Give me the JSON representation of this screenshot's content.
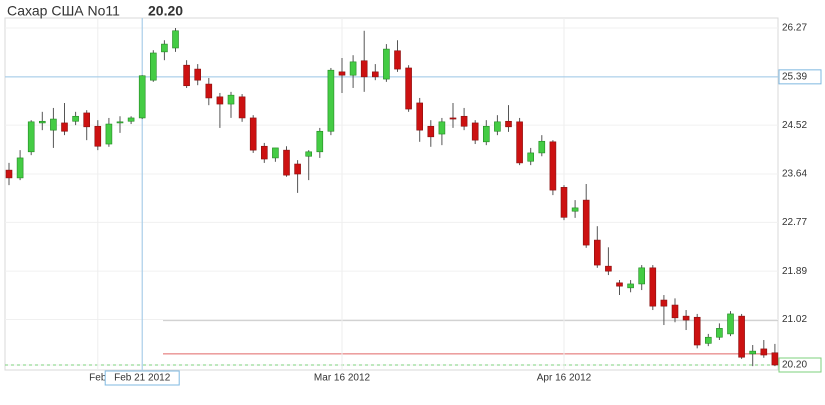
{
  "chart_data": {
    "type": "candlestick",
    "title": "Сахар США No11",
    "price": {
      "value": 20.2,
      "label": "20.20"
    },
    "categories": [
      null,
      null,
      null,
      null,
      null,
      null,
      null,
      null,
      "Feb",
      null,
      null,
      null,
      "Feb 21 2012",
      null,
      null,
      null,
      null,
      null,
      null,
      null,
      null,
      null,
      null,
      null,
      null,
      null,
      null,
      null,
      null,
      null,
      "Mar 16 2012",
      null,
      null,
      null,
      null,
      null,
      null,
      null,
      null,
      null,
      null,
      null,
      null,
      null,
      null,
      null,
      null,
      null,
      null,
      null,
      "Apr 16 2012",
      null,
      null,
      null,
      null,
      null,
      null,
      null,
      null,
      null,
      null,
      null,
      null,
      null,
      null,
      null,
      null,
      null,
      null,
      null
    ],
    "open": [
      23.71,
      23.57,
      24.04,
      24.56,
      24.43,
      24.56,
      24.59,
      24.74,
      24.5,
      24.18,
      24.56,
      24.59,
      24.65,
      25.33,
      25.84,
      25.91,
      25.6,
      25.53,
      25.26,
      25.03,
      24.9,
      25.03,
      24.65,
      24.14,
      23.93,
      24.07,
      23.82,
      23.96,
      24.04,
      24.41,
      25.48,
      25.42,
      25.68,
      25.48,
      25.35,
      25.86,
      25.55,
      24.92,
      24.5,
      24.36,
      24.65,
      24.68,
      24.56,
      24.22,
      24.41,
      24.59,
      24.58,
      23.87,
      24.02,
      24.22,
      23.4,
      22.97,
      23.17,
      22.45,
      21.98,
      21.68,
      21.59,
      21.66,
      21.95,
      21.37,
      21.28,
      21.08,
      21.06,
      20.59,
      20.7,
      20.76,
      21.08,
      20.4,
      20.49,
      20.42
    ],
    "high": [
      23.84,
      24.07,
      24.61,
      24.76,
      24.83,
      24.92,
      24.76,
      24.79,
      24.61,
      24.65,
      24.68,
      24.68,
      25.42,
      25.87,
      26.05,
      26.27,
      25.69,
      25.62,
      25.37,
      25.1,
      25.12,
      25.08,
      24.7,
      24.2,
      24.11,
      24.14,
      23.89,
      24.07,
      24.47,
      25.55,
      25.73,
      25.78,
      26.22,
      25.62,
      25.98,
      26.05,
      25.6,
      25.01,
      24.61,
      24.65,
      24.92,
      24.83,
      24.61,
      24.61,
      24.7,
      24.88,
      24.65,
      24.11,
      24.34,
      24.25,
      23.44,
      23.17,
      23.46,
      22.7,
      22.32,
      21.73,
      21.73,
      22.0,
      22.0,
      21.46,
      21.4,
      21.19,
      21.12,
      20.76,
      20.95,
      21.17,
      21.12,
      20.56,
      20.65,
      20.58
    ],
    "low": [
      23.44,
      23.53,
      23.98,
      24.43,
      24.11,
      24.34,
      24.52,
      24.25,
      24.07,
      24.13,
      24.38,
      24.54,
      24.63,
      25.3,
      25.69,
      25.84,
      25.19,
      25.24,
      24.88,
      24.47,
      24.65,
      24.58,
      24.02,
      23.84,
      23.86,
      23.59,
      23.3,
      23.53,
      23.93,
      24.34,
      25.1,
      25.19,
      25.12,
      25.33,
      25.3,
      25.48,
      24.76,
      24.22,
      24.13,
      24.16,
      24.47,
      24.43,
      24.18,
      24.16,
      24.34,
      24.4,
      23.8,
      23.8,
      23.96,
      23.26,
      22.81,
      22.85,
      22.31,
      21.95,
      21.82,
      21.46,
      21.51,
      21.55,
      21.19,
      20.92,
      20.97,
      20.83,
      20.5,
      20.54,
      20.65,
      20.72,
      20.31,
      20.18,
      20.33,
      20.18
    ],
    "close": [
      23.57,
      23.93,
      24.58,
      24.59,
      24.63,
      24.41,
      24.68,
      24.49,
      24.14,
      24.54,
      24.58,
      24.65,
      25.41,
      25.82,
      25.98,
      26.22,
      25.23,
      25.33,
      25.01,
      24.9,
      25.06,
      24.65,
      24.07,
      23.91,
      24.11,
      23.62,
      23.64,
      24.04,
      24.41,
      25.51,
      25.42,
      25.66,
      25.39,
      25.39,
      25.89,
      25.53,
      24.81,
      24.43,
      24.31,
      24.58,
      24.63,
      24.5,
      24.25,
      24.5,
      24.58,
      24.49,
      23.84,
      24.02,
      24.23,
      23.35,
      22.86,
      23.03,
      22.36,
      22.0,
      21.89,
      21.62,
      21.66,
      21.95,
      21.26,
      21.26,
      21.05,
      21.01,
      20.56,
      20.7,
      20.86,
      21.12,
      20.34,
      20.45,
      20.38,
      20.2
    ],
    "up_color": "#44cc44",
    "down_color": "#cc1111",
    "ylim": [
      20.11,
      26.45
    ],
    "yticks": [
      26.27,
      25.39,
      24.52,
      23.64,
      22.77,
      21.89,
      21.02,
      {
        "value": 20.2,
        "label": "20.20"
      }
    ],
    "grid": true,
    "crosshair": {
      "x": "Feb 21 2012",
      "y": 25.39
    },
    "reference_lines": [
      {
        "value": 20.4,
        "color": "#e06666"
      },
      {
        "value": 21.0,
        "color": "#cccccc"
      }
    ]
  }
}
